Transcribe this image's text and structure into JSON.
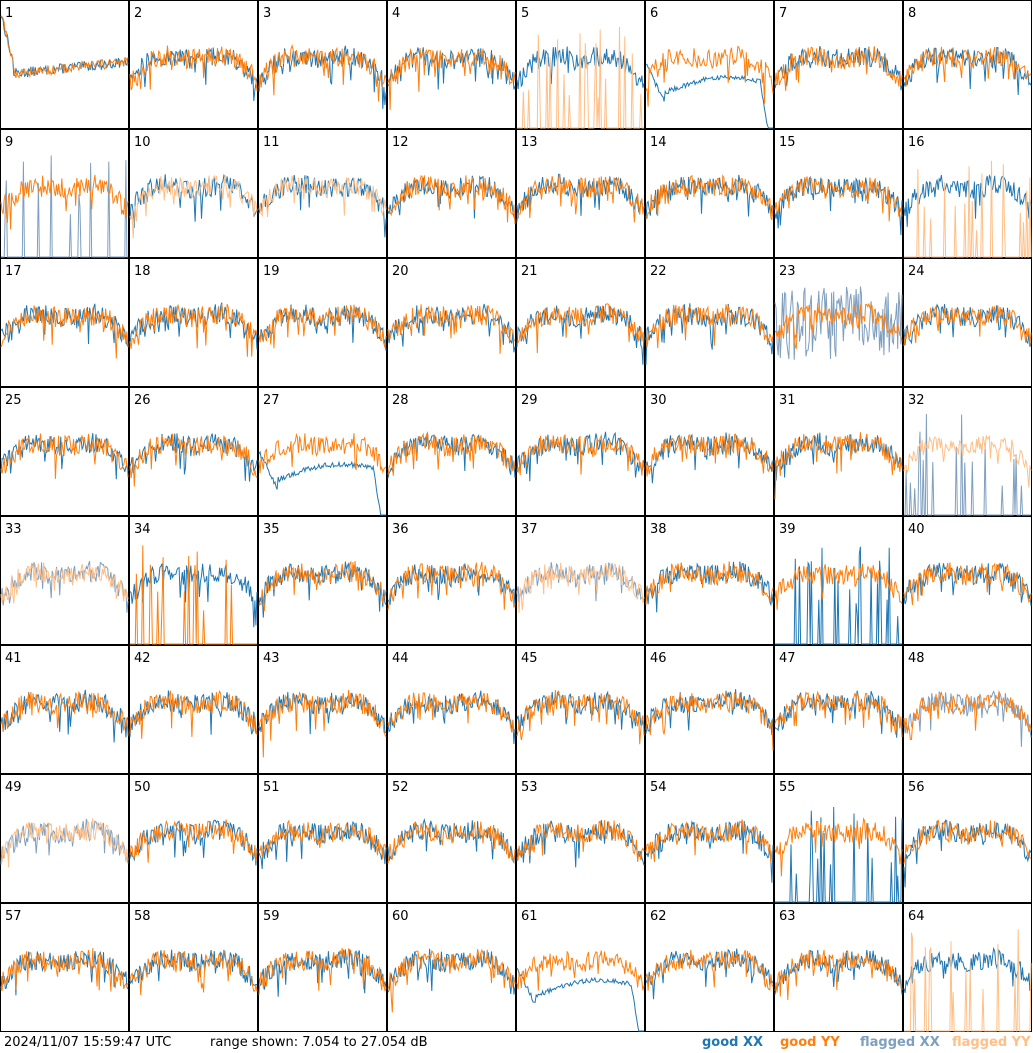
{
  "footer": {
    "timestamp": "2024/11/07 15:59:47 UTC",
    "range_text": "range shown: 7.054 to 27.054 dB"
  },
  "legend": [
    {
      "label": "good XX",
      "color": "#1f77b4"
    },
    {
      "label": "good YY",
      "color": "#ff7f0e"
    },
    {
      "label": "flagged XX",
      "color": "#7f9fbf"
    },
    {
      "label": "flagged YY",
      "color": "#ffbf87"
    }
  ],
  "chart_data": {
    "type": "line",
    "layout": "8x8 small multiples",
    "units": "dB",
    "ylim": [
      7.054,
      27.054
    ],
    "series_types": [
      "good XX",
      "good YY",
      "flagged XX",
      "flagged YY"
    ],
    "panels": [
      {
        "label": "1",
        "xx": "good",
        "yy": "good",
        "xx_shape": "dip",
        "yy_shape": "dip"
      },
      {
        "label": "2",
        "xx": "good",
        "yy": "good"
      },
      {
        "label": "3",
        "xx": "good",
        "yy": "good"
      },
      {
        "label": "4",
        "xx": "good",
        "yy": "good"
      },
      {
        "label": "5",
        "xx": "good",
        "yy": "flagged",
        "yy_shape": "spikes"
      },
      {
        "label": "6",
        "xx": "good",
        "yy": "good",
        "xx_shape": "decay"
      },
      {
        "label": "7",
        "xx": "good",
        "yy": "good"
      },
      {
        "label": "8",
        "xx": "good",
        "yy": "good"
      },
      {
        "label": "9",
        "xx": "flagged",
        "yy": "good",
        "xx_shape": "spikes"
      },
      {
        "label": "10",
        "xx": "good",
        "yy": "flagged"
      },
      {
        "label": "11",
        "xx": "good",
        "yy": "flagged"
      },
      {
        "label": "12",
        "xx": "good",
        "yy": "good"
      },
      {
        "label": "13",
        "xx": "good",
        "yy": "good"
      },
      {
        "label": "14",
        "xx": "good",
        "yy": "good"
      },
      {
        "label": "15",
        "xx": "good",
        "yy": "good"
      },
      {
        "label": "16",
        "xx": "good",
        "yy": "flagged",
        "yy_shape": "spikes"
      },
      {
        "label": "17",
        "xx": "good",
        "yy": "good"
      },
      {
        "label": "18",
        "xx": "good",
        "yy": "good"
      },
      {
        "label": "19",
        "xx": "good",
        "yy": "good"
      },
      {
        "label": "20",
        "xx": "good",
        "yy": "good"
      },
      {
        "label": "21",
        "xx": "good",
        "yy": "good"
      },
      {
        "label": "22",
        "xx": "good",
        "yy": "good"
      },
      {
        "label": "23",
        "xx": "flagged",
        "yy": "good",
        "xx_shape": "noisy"
      },
      {
        "label": "24",
        "xx": "good",
        "yy": "good"
      },
      {
        "label": "25",
        "xx": "good",
        "yy": "good"
      },
      {
        "label": "26",
        "xx": "good",
        "yy": "good"
      },
      {
        "label": "27",
        "xx": "good",
        "yy": "good",
        "xx_shape": "decay"
      },
      {
        "label": "28",
        "xx": "good",
        "yy": "good"
      },
      {
        "label": "29",
        "xx": "good",
        "yy": "good"
      },
      {
        "label": "30",
        "xx": "good",
        "yy": "good"
      },
      {
        "label": "31",
        "xx": "good",
        "yy": "good"
      },
      {
        "label": "32",
        "xx": "flagged",
        "yy": "flagged",
        "xx_shape": "spikes"
      },
      {
        "label": "33",
        "xx": "flagged",
        "yy": "flagged"
      },
      {
        "label": "34",
        "xx": "good",
        "yy": "good",
        "yy_shape": "spikes"
      },
      {
        "label": "35",
        "xx": "good",
        "yy": "good"
      },
      {
        "label": "36",
        "xx": "good",
        "yy": "good"
      },
      {
        "label": "37",
        "xx": "flagged",
        "yy": "flagged"
      },
      {
        "label": "38",
        "xx": "good",
        "yy": "good"
      },
      {
        "label": "39",
        "xx": "good",
        "yy": "good",
        "xx_shape": "spikes"
      },
      {
        "label": "40",
        "xx": "good",
        "yy": "good"
      },
      {
        "label": "41",
        "xx": "good",
        "yy": "good"
      },
      {
        "label": "42",
        "xx": "good",
        "yy": "good"
      },
      {
        "label": "43",
        "xx": "good",
        "yy": "good"
      },
      {
        "label": "44",
        "xx": "good",
        "yy": "good"
      },
      {
        "label": "45",
        "xx": "good",
        "yy": "good"
      },
      {
        "label": "46",
        "xx": "good",
        "yy": "good"
      },
      {
        "label": "47",
        "xx": "good",
        "yy": "good"
      },
      {
        "label": "48",
        "xx": "flagged",
        "yy": "good"
      },
      {
        "label": "49",
        "xx": "flagged",
        "yy": "flagged"
      },
      {
        "label": "50",
        "xx": "good",
        "yy": "good"
      },
      {
        "label": "51",
        "xx": "good",
        "yy": "good"
      },
      {
        "label": "52",
        "xx": "good",
        "yy": "good"
      },
      {
        "label": "53",
        "xx": "good",
        "yy": "good"
      },
      {
        "label": "54",
        "xx": "good",
        "yy": "good"
      },
      {
        "label": "55",
        "xx": "good",
        "yy": "good",
        "xx_shape": "spikes"
      },
      {
        "label": "56",
        "xx": "good",
        "yy": "good"
      },
      {
        "label": "57",
        "xx": "good",
        "yy": "good"
      },
      {
        "label": "58",
        "xx": "good",
        "yy": "good"
      },
      {
        "label": "59",
        "xx": "good",
        "yy": "good"
      },
      {
        "label": "60",
        "xx": "good",
        "yy": "good"
      },
      {
        "label": "61",
        "xx": "good",
        "yy": "good",
        "xx_shape": "decay"
      },
      {
        "label": "62",
        "xx": "good",
        "yy": "good"
      },
      {
        "label": "63",
        "xx": "good",
        "yy": "good"
      },
      {
        "label": "64",
        "xx": "good",
        "yy": "flagged",
        "yy_shape": "spikes"
      }
    ]
  }
}
